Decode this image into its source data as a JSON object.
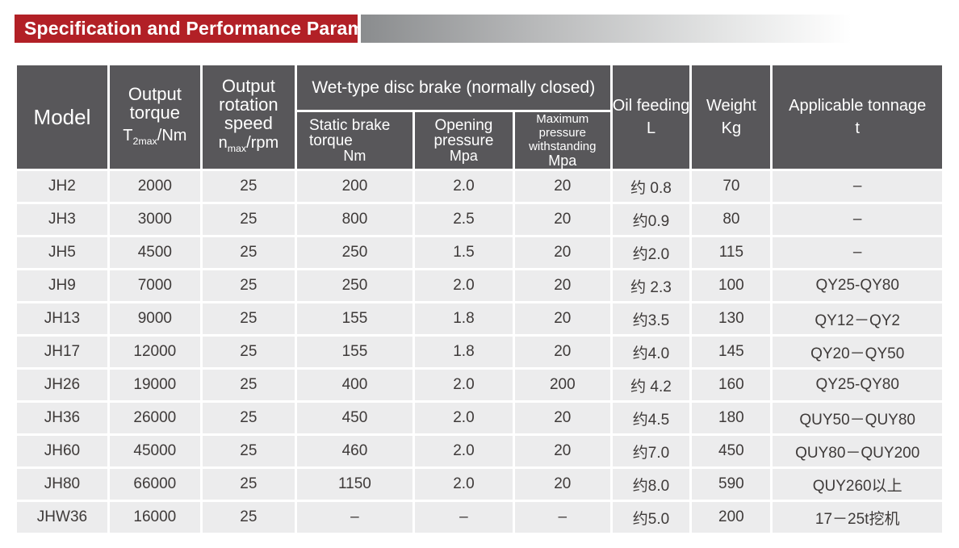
{
  "banner": {
    "title": "Specification and Performance Parameters",
    "bg_color": "#b22026",
    "text_color": "#ffffff"
  },
  "colors": {
    "header_bg": "#58575a",
    "header_text": "#ffffff",
    "row_bg": "#ececed",
    "cell_text": "#3e3a39",
    "separator": "#ffffff",
    "gradient_bar_start": "#8a8c8e",
    "gradient_bar_end": "#ffffff"
  },
  "header": {
    "model": "Model",
    "output_torque": {
      "line1": "Output",
      "line2": "torque",
      "unit": {
        "pre": "T",
        "sub": "2max",
        "post": "/Nm"
      }
    },
    "output_speed": {
      "line1": "Output",
      "line2": "rotation",
      "line3": "speed",
      "unit": {
        "pre": "n",
        "sub": "max",
        "post": "/rpm"
      }
    },
    "wet_group": "Wet-type disc brake (normally closed)",
    "static_brake": {
      "line1": "Static brake",
      "line2": "torque",
      "unit": "Nm"
    },
    "opening_pressure": {
      "line1": "Opening",
      "line2": "pressure",
      "unit": "Mpa"
    },
    "max_pressure": {
      "line1": "Maximum pressure",
      "line2": "withstanding",
      "unit": "Mpa"
    },
    "oil_feeding": {
      "line1": "Oil feeding",
      "unit": "L"
    },
    "weight": {
      "line1": "Weight",
      "unit": "Kg"
    },
    "tonnage": {
      "line1": "Applicable tonnage",
      "unit": "t"
    }
  },
  "table": {
    "columns": [
      "model",
      "output-torque",
      "output-speed",
      "static-brake-torque",
      "opening-pressure",
      "max-pressure",
      "oil-feeding",
      "weight",
      "applicable-tonnage"
    ],
    "rows": [
      [
        "JH2",
        "2000",
        "25",
        "200",
        "2.0",
        "20",
        "约 0.8",
        "70",
        "–"
      ],
      [
        "JH3",
        "3000",
        "25",
        "800",
        "2.5",
        "20",
        "约0.9",
        "80",
        "–"
      ],
      [
        "JH5",
        "4500",
        "25",
        "250",
        "1.5",
        "20",
        "约2.0",
        "115",
        "–"
      ],
      [
        "JH9",
        "7000",
        "25",
        "250",
        "2.0",
        "20",
        "约 2.3",
        "100",
        "QY25-QY80"
      ],
      [
        "JH13",
        "9000",
        "25",
        "155",
        "1.8",
        "20",
        "约3.5",
        "130",
        "QY12－QY2"
      ],
      [
        "JH17",
        "12000",
        "25",
        "155",
        "1.8",
        "20",
        "约4.0",
        "145",
        "QY20－QY50"
      ],
      [
        "JH26",
        "19000",
        "25",
        "400",
        "2.0",
        "200",
        "约 4.2",
        "160",
        "QY25-QY80"
      ],
      [
        "JH36",
        "26000",
        "25",
        "450",
        "2.0",
        "20",
        "约4.5",
        "180",
        "QUY50－QUY80"
      ],
      [
        "JH60",
        "45000",
        "25",
        "460",
        "2.0",
        "20",
        "约7.0",
        "450",
        "QUY80－QUY200"
      ],
      [
        "JH80",
        "66000",
        "25",
        "1150",
        "2.0",
        "20",
        "约8.0",
        "590",
        "QUY260以上"
      ],
      [
        "JHW36",
        "16000",
        "25",
        "–",
        "–",
        "–",
        "约5.0",
        "200",
        "17－25t挖机"
      ]
    ]
  }
}
